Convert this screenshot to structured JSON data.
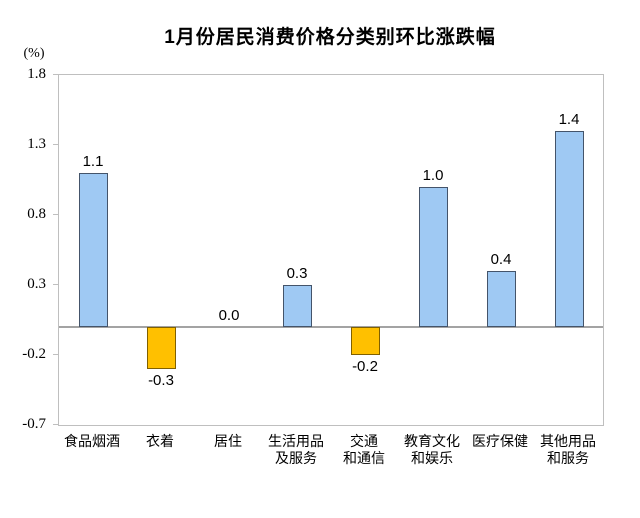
{
  "page": {
    "background": "#ffffff"
  },
  "chart_data": {
    "type": "bar",
    "title": "1月份居民消费价格分类别环比涨跌幅",
    "ylabel": "(%)",
    "xlabel": "",
    "categories": [
      "食品烟酒",
      "衣着",
      "居住",
      "生活用品及服务",
      "交通和通信",
      "教育文化和娱乐",
      "医疗保健",
      "其他用品和服务"
    ],
    "category_label_lines": [
      [
        "食品烟酒"
      ],
      [
        "衣着"
      ],
      [
        "居住"
      ],
      [
        "生活用品",
        "及服务"
      ],
      [
        "交通",
        "和通信"
      ],
      [
        "教育文化",
        "和娱乐"
      ],
      [
        "医疗保健"
      ],
      [
        "其他用品",
        "和服务"
      ]
    ],
    "values": [
      1.1,
      -0.3,
      0.0,
      0.3,
      -0.2,
      1.0,
      0.4,
      1.4
    ],
    "value_labels": [
      "1.1",
      "-0.3",
      "0.0",
      "0.3",
      "-0.2",
      "1.0",
      "0.4",
      "1.4"
    ],
    "ylim": [
      -0.7,
      1.8
    ],
    "yticks": [
      1.8,
      1.3,
      0.8,
      0.3,
      -0.2,
      -0.7
    ],
    "ytick_labels": [
      "1.8",
      "1.3",
      "0.8",
      "0.3",
      "-0.2",
      "-0.7"
    ],
    "grid": false,
    "legend": false,
    "colors": {
      "positive_fill": "#9FC9F3",
      "positive_border": "#44546A",
      "negative_fill": "#FFC000",
      "negative_border": "#806000",
      "frame": "#BFBFBF",
      "zero_line": "#A3A3A3",
      "text": "#000000"
    }
  }
}
